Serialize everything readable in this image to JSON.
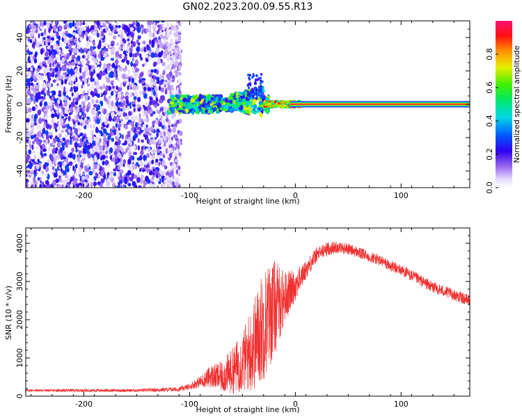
{
  "figure_title": "GN02.2023.200.09.55.R13",
  "chart_data": [
    {
      "type": "heatmap",
      "name": "spectrogram",
      "title": "GN02.2023.200.09.55.R13",
      "xlabel": "Height of straight line (km)",
      "ylabel": "Frequency (Hz)",
      "xlim": [
        -255,
        165
      ],
      "ylim": [
        -50,
        50
      ],
      "xticks": [
        -200,
        -100,
        0,
        100
      ],
      "xtick_labels": [
        "-200",
        "-100",
        "0",
        "100"
      ],
      "yticks": [
        -40,
        -20,
        0,
        20,
        40
      ],
      "ytick_labels": [
        "-40",
        "-20",
        "0",
        "20",
        "40"
      ],
      "description_regions": [
        {
          "x_range": [
            -255,
            -110
          ],
          "content": "diffuse noise, amplitude 0.05-0.3"
        },
        {
          "x_range": [
            -120,
            -30
          ],
          "content": "signal cluster near 0 Hz, amplitude 0.3-0.7"
        },
        {
          "x_range": [
            -30,
            165
          ],
          "content": "narrow line at 0 Hz, amplitude ~1.0"
        }
      ],
      "colorbar": {
        "label": "Normalized spectral amplitude",
        "range": [
          0.0,
          1.0
        ],
        "ticks": [
          0.0,
          0.2,
          0.4,
          0.6,
          0.8
        ],
        "tick_labels": [
          "0.0",
          "0.2",
          "0.4",
          "0.6",
          "0.8"
        ],
        "colormap": "rainbow (white-purple-blue-cyan-green-yellow-red-pink)"
      }
    },
    {
      "type": "line",
      "name": "snr",
      "xlabel": "Height of straight line (km)",
      "ylabel": "SNR (10 * v/v)",
      "xlim": [
        -255,
        165
      ],
      "ylim": [
        0,
        4400
      ],
      "xticks": [
        -200,
        -100,
        0,
        100
      ],
      "xtick_labels": [
        "-200",
        "-100",
        "0",
        "100"
      ],
      "yticks": [
        0,
        1000,
        2000,
        3000,
        4000
      ],
      "ytick_labels": [
        "0",
        "1000",
        "2000",
        "3000",
        "4000"
      ],
      "color": "#f03030",
      "series": [
        {
          "name": "SNR",
          "x": [
            -255,
            -200,
            -150,
            -110,
            -100,
            -90,
            -80,
            -70,
            -60,
            -50,
            -40,
            -30,
            -20,
            -10,
            0,
            10,
            20,
            30,
            40,
            50,
            60,
            70,
            80,
            90,
            100,
            110,
            120,
            130,
            140,
            150,
            165
          ],
          "y": [
            150,
            150,
            150,
            180,
            250,
            380,
            520,
            500,
            650,
            900,
            1300,
            1900,
            2300,
            2600,
            2900,
            3300,
            3700,
            3850,
            3900,
            3850,
            3750,
            3650,
            3550,
            3400,
            3300,
            3150,
            3000,
            2850,
            2750,
            2650,
            2500
          ],
          "noise_amplitude": [
            30,
            40,
            40,
            60,
            80,
            150,
            300,
            400,
            600,
            800,
            1200,
            1500,
            1300,
            700,
            400,
            250,
            200,
            180,
            160,
            150,
            150,
            150,
            150,
            150,
            150,
            150,
            150,
            150,
            150,
            150,
            150
          ]
        }
      ]
    }
  ]
}
